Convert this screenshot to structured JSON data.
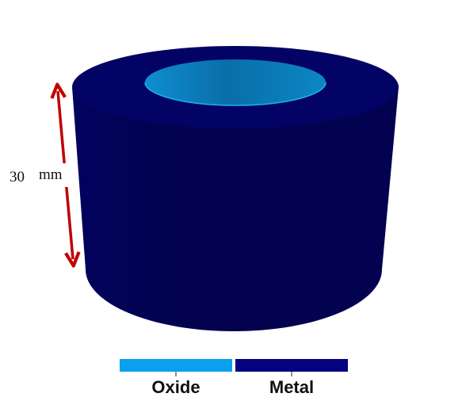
{
  "dimension": {
    "value": "30",
    "unit": "mm"
  },
  "legend": {
    "oxide": {
      "label": "Oxide",
      "color": "#0aa0ee"
    },
    "metal": {
      "label": "Metal",
      "color": "#030380"
    }
  },
  "colors": {
    "arrow": "#c00000",
    "metal_side": "#020258",
    "metal_top": "#030366",
    "oxide_inner": "#0a8cc8"
  }
}
